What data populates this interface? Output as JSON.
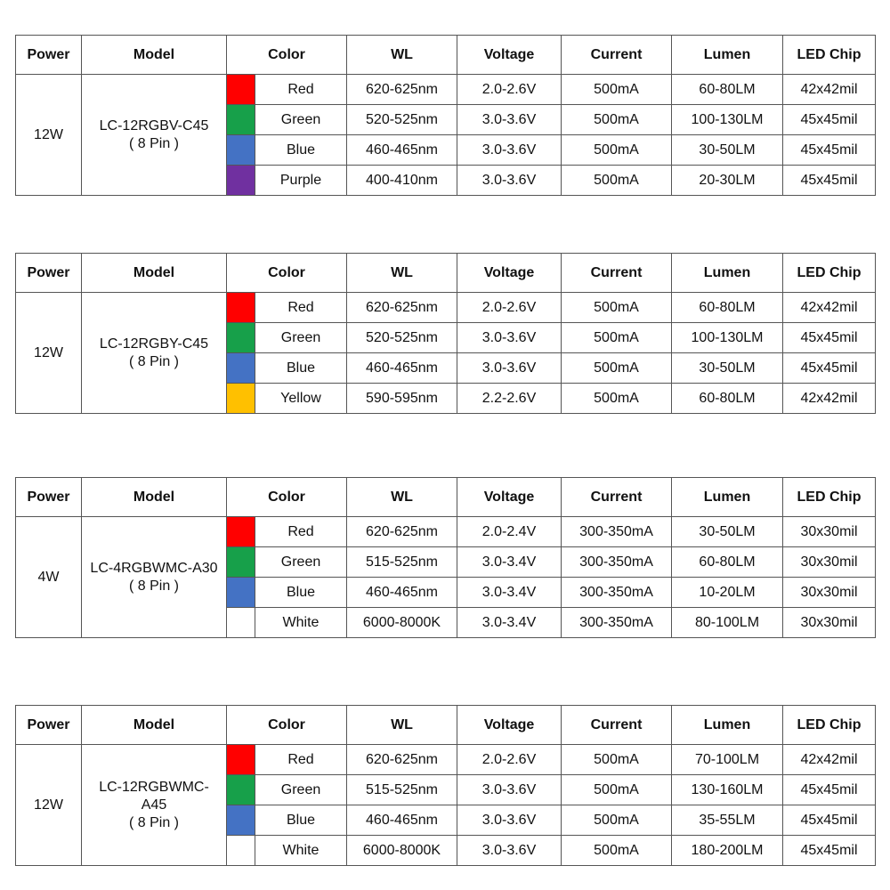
{
  "headers": [
    "Power",
    "Model",
    "Color",
    "WL",
    "Voltage",
    "Current",
    "Lumen",
    "LED Chip"
  ],
  "tables": [
    {
      "power": "12W",
      "model_lines": [
        "LC-12RGBV-C45",
        "( 8 Pin )"
      ],
      "rows": [
        {
          "swatch": "#ff0000",
          "color": "Red",
          "wl": "620-625nm",
          "voltage": "2.0-2.6V",
          "current": "500mA",
          "lumen": "60-80LM",
          "chip": "42x42mil"
        },
        {
          "swatch": "#17a04a",
          "color": "Green",
          "wl": "520-525nm",
          "voltage": "3.0-3.6V",
          "current": "500mA",
          "lumen": "100-130LM",
          "chip": "45x45mil"
        },
        {
          "swatch": "#4472c4",
          "color": "Blue",
          "wl": "460-465nm",
          "voltage": "3.0-3.6V",
          "current": "500mA",
          "lumen": "30-50LM",
          "chip": "45x45mil"
        },
        {
          "swatch": "#7030a0",
          "color": "Purple",
          "wl": "400-410nm",
          "voltage": "3.0-3.6V",
          "current": "500mA",
          "lumen": "20-30LM",
          "chip": "45x45mil"
        }
      ]
    },
    {
      "power": "12W",
      "model_lines": [
        "LC-12RGBY-C45",
        "( 8 Pin )"
      ],
      "rows": [
        {
          "swatch": "#ff0000",
          "color": "Red",
          "wl": "620-625nm",
          "voltage": "2.0-2.6V",
          "current": "500mA",
          "lumen": "60-80LM",
          "chip": "42x42mil"
        },
        {
          "swatch": "#17a04a",
          "color": "Green",
          "wl": "520-525nm",
          "voltage": "3.0-3.6V",
          "current": "500mA",
          "lumen": "100-130LM",
          "chip": "45x45mil"
        },
        {
          "swatch": "#4472c4",
          "color": "Blue",
          "wl": "460-465nm",
          "voltage": "3.0-3.6V",
          "current": "500mA",
          "lumen": "30-50LM",
          "chip": "45x45mil"
        },
        {
          "swatch": "#ffc000",
          "color": "Yellow",
          "wl": "590-595nm",
          "voltage": "2.2-2.6V",
          "current": "500mA",
          "lumen": "60-80LM",
          "chip": "42x42mil"
        }
      ]
    },
    {
      "power": "4W",
      "model_lines": [
        "LC-4RGBWMC-A30",
        "( 8 Pin )"
      ],
      "rows": [
        {
          "swatch": "#ff0000",
          "color": "Red",
          "wl": "620-625nm",
          "voltage": "2.0-2.4V",
          "current": "300-350mA",
          "lumen": "30-50LM",
          "chip": "30x30mil"
        },
        {
          "swatch": "#17a04a",
          "color": "Green",
          "wl": "515-525nm",
          "voltage": "3.0-3.4V",
          "current": "300-350mA",
          "lumen": "60-80LM",
          "chip": "30x30mil"
        },
        {
          "swatch": "#4472c4",
          "color": "Blue",
          "wl": "460-465nm",
          "voltage": "3.0-3.4V",
          "current": "300-350mA",
          "lumen": "10-20LM",
          "chip": "30x30mil"
        },
        {
          "swatch": "#ffffff",
          "color": "White",
          "wl": "6000-8000K",
          "voltage": "3.0-3.4V",
          "current": "300-350mA",
          "lumen": "80-100LM",
          "chip": "30x30mil"
        }
      ]
    },
    {
      "power": "12W",
      "model_lines": [
        "LC-12RGBWMC-",
        "A45",
        "( 8 Pin )"
      ],
      "rows": [
        {
          "swatch": "#ff0000",
          "color": "Red",
          "wl": "620-625nm",
          "voltage": "2.0-2.6V",
          "current": "500mA",
          "lumen": "70-100LM",
          "chip": "42x42mil"
        },
        {
          "swatch": "#17a04a",
          "color": "Green",
          "wl": "515-525nm",
          "voltage": "3.0-3.6V",
          "current": "500mA",
          "lumen": "130-160LM",
          "chip": "45x45mil"
        },
        {
          "swatch": "#4472c4",
          "color": "Blue",
          "wl": "460-465nm",
          "voltage": "3.0-3.6V",
          "current": "500mA",
          "lumen": "35-55LM",
          "chip": "45x45mil"
        },
        {
          "swatch": "#ffffff",
          "color": "White",
          "wl": "6000-8000K",
          "voltage": "3.0-3.6V",
          "current": "500mA",
          "lumen": "180-200LM",
          "chip": "45x45mil"
        }
      ]
    }
  ]
}
